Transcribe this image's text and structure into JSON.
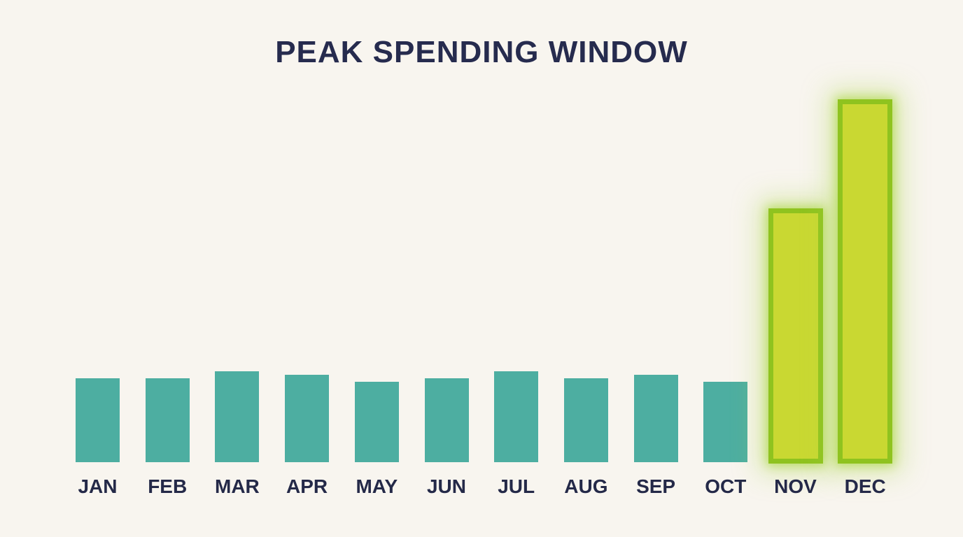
{
  "header": {
    "title": "PEAK SPENDING WINDOW"
  },
  "chart_data": {
    "type": "bar",
    "title": "PEAK SPENDING WINDOW",
    "categories": [
      "JAN",
      "FEB",
      "MAR",
      "APR",
      "MAY",
      "JUN",
      "JUL",
      "AUG",
      "SEP",
      "OCT",
      "NOV",
      "DEC"
    ],
    "values": [
      23,
      23,
      25,
      24,
      22,
      23,
      25,
      23,
      24,
      22,
      70,
      100
    ],
    "highlight_flags": [
      false,
      false,
      false,
      false,
      false,
      false,
      false,
      false,
      false,
      false,
      true,
      true
    ],
    "highlighted_categories": [
      "NOV",
      "DEC"
    ],
    "xlabel": "",
    "ylabel": "",
    "ylim": [
      0,
      100
    ],
    "grid": false,
    "legend": false,
    "axis_values_shown": false,
    "colors": {
      "background": "#F8F5EF",
      "bar_default": "#4DAEA1",
      "bar_highlight_fill": "#C9D832",
      "bar_highlight_border": "#8FC31F",
      "title_text": "#262B4E",
      "axis_label_text": "#242948"
    }
  }
}
